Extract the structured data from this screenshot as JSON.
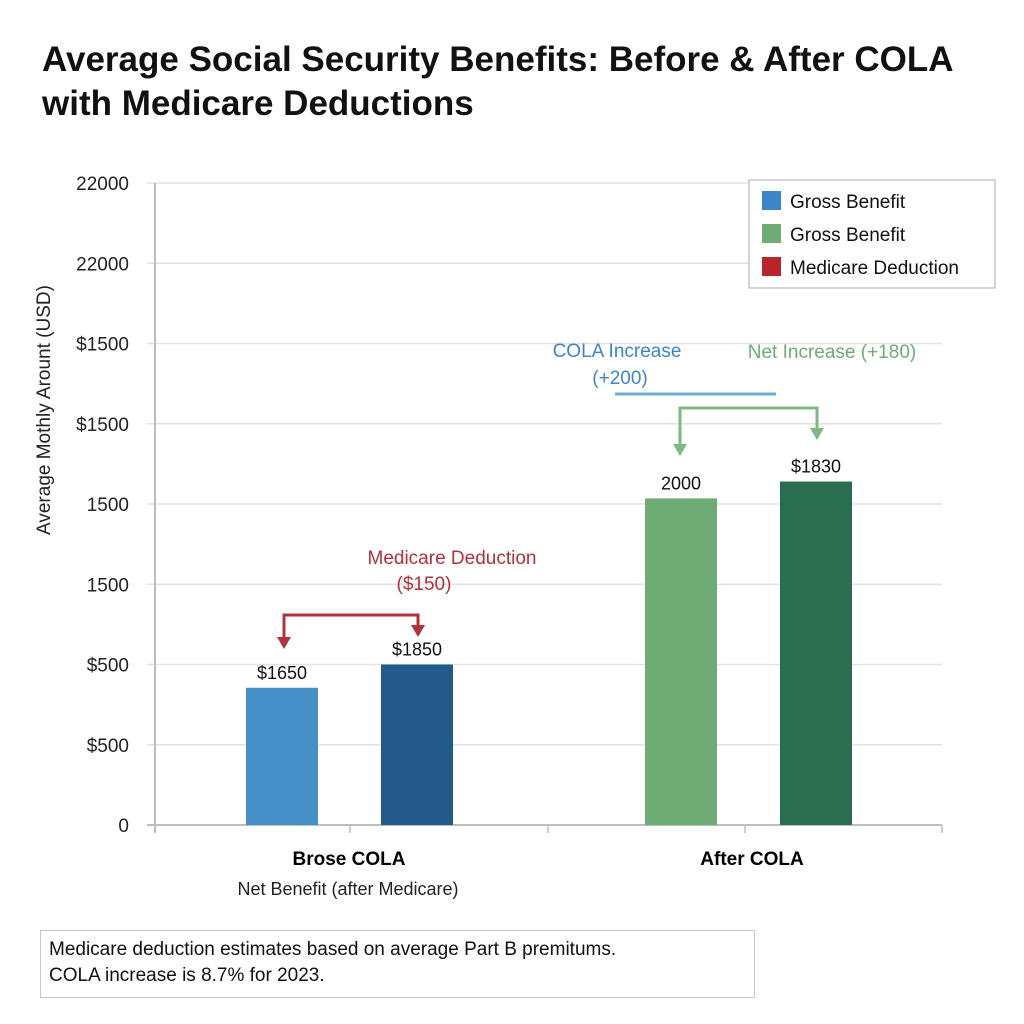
{
  "chart_data": {
    "type": "bar",
    "title": "Average Social Security Benefits: Before & After COLA with Medicare Deductions",
    "ylabel": "Average Mothly Arount (USD)",
    "xlabel": "",
    "y_tick_labels": [
      "0",
      "$500",
      "$500",
      "1500",
      "1500",
      "$1500",
      "$1500",
      "22000",
      "22000"
    ],
    "ylim": [
      0,
      8
    ],
    "grid": true,
    "legend_placement": "top-right",
    "categories": [
      "Brose COLA",
      "After COLA"
    ],
    "category_sublabel": "Net Benefit (after Medicare)",
    "bars": [
      {
        "category": "Brose COLA",
        "value": 1.71,
        "label": "$1650",
        "color": "#4590c7"
      },
      {
        "category": "Brose COLA",
        "value": 2.0,
        "label": "$1850",
        "color": "#225a8c"
      },
      {
        "category": "After COLA",
        "value": 4.07,
        "label": "2000",
        "color": "#6fab74"
      },
      {
        "category": "After COLA",
        "value": 4.28,
        "label": "$1830",
        "color": "#2b6e4d"
      }
    ],
    "legend": [
      {
        "label": "Gross Benefit",
        "color": "#3d85c6"
      },
      {
        "label": "Gross Benefit",
        "color": "#6fab74"
      },
      {
        "label": "Medicare Deduction",
        "color": "#b8262c"
      }
    ],
    "annotations": {
      "medicare": {
        "line1": "Medicare Deduction",
        "line2": "($150)",
        "color": "#b0323a"
      },
      "cola": {
        "line1": "COLA Increase",
        "line2": "(+200)",
        "color": "#3d85c6"
      },
      "net": {
        "line1": "Net Increase (+180)",
        "color": "#6fab74"
      }
    }
  },
  "footnote": {
    "line1": "Medicare deduction estimates based on average Part B premitums.",
    "line2": "COLA increase is 8.7% for 2023."
  }
}
